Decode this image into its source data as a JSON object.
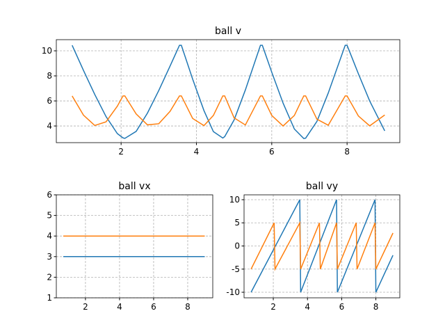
{
  "chart_data": [
    {
      "type": "line",
      "title": "ball v",
      "x": [
        0.7,
        1.0,
        1.3,
        1.6,
        1.9,
        2.05,
        2.1,
        2.4,
        2.7,
        3.0,
        3.3,
        3.55,
        3.6,
        3.9,
        4.2,
        4.45,
        4.7,
        4.75,
        5.0,
        5.3,
        5.7,
        5.75,
        6.0,
        6.3,
        6.6,
        6.85,
        6.9,
        7.2,
        7.5,
        7.95,
        8.0,
        8.3,
        8.6,
        9.0
      ],
      "series": [
        {
          "color": "#1f77b4",
          "values": [
            10.44,
            8.44,
            6.52,
            4.75,
            3.39,
            3.05,
            3.01,
            3.57,
            5.03,
            6.83,
            8.78,
            10.44,
            10.44,
            7.74,
            5.23,
            3.55,
            3.04,
            3.15,
            4.48,
            6.88,
            10.44,
            10.44,
            8.29,
            5.83,
            3.76,
            3,
            3.03,
            4.37,
            6.63,
            10.44,
            10.44,
            8.17,
            6.0,
            3.61
          ]
        },
        {
          "color": "#ff7f0e",
          "values": [
            6.4,
            4.87,
            4.04,
            4.33,
            5.58,
            6.4,
            6.4,
            4.96,
            4.09,
            4.18,
            5.17,
            6.4,
            6.4,
            4.6,
            4.03,
            4.84,
            6.4,
            6.4,
            4.65,
            4.08,
            6.4,
            6.4,
            4.84,
            4,
            4.84,
            6.4,
            6.4,
            4.54,
            4.06,
            6.4,
            6.4,
            4.8,
            4.01,
            4.88
          ]
        }
      ],
      "xlim": [
        0.28,
        9.4
      ],
      "xticks": [
        2,
        4,
        6,
        8
      ],
      "ylim": [
        2.67,
        10.89
      ],
      "yticks": [
        4,
        6,
        8,
        10
      ],
      "grid": true
    },
    {
      "type": "line",
      "title": "ball vx",
      "x": [
        0.7,
        1.0,
        1.3,
        1.6,
        1.9,
        2.05,
        2.1,
        2.4,
        2.7,
        3.0,
        3.3,
        3.55,
        3.6,
        3.9,
        4.2,
        4.45,
        4.7,
        4.75,
        5.0,
        5.3,
        5.7,
        5.75,
        6.0,
        6.3,
        6.6,
        6.85,
        6.9,
        7.2,
        7.5,
        7.95,
        8.0,
        8.3,
        8.6,
        9.0
      ],
      "series": [
        {
          "color": "#1f77b4",
          "values": [
            3,
            3,
            3,
            3,
            3,
            3,
            3,
            3,
            3,
            3,
            3,
            3,
            3,
            3,
            3,
            3,
            3,
            3,
            3,
            3,
            3,
            3,
            3,
            3,
            3,
            3,
            3,
            3,
            3,
            3,
            3,
            3,
            3,
            3
          ]
        },
        {
          "color": "#ff7f0e",
          "values": [
            4,
            4,
            4,
            4,
            4,
            4,
            4,
            4,
            4,
            4,
            4,
            4,
            4,
            4,
            4,
            4,
            4,
            4,
            4,
            4,
            4,
            4,
            4,
            4,
            4,
            4,
            4,
            4,
            4,
            4,
            4,
            4,
            4,
            4
          ]
        }
      ],
      "xlim": [
        0.29,
        9.47
      ],
      "xticks": [
        2,
        4,
        6,
        8
      ],
      "ylim": [
        1,
        6
      ],
      "yticks": [
        1,
        2,
        3,
        4,
        5,
        6
      ],
      "grid": true
    },
    {
      "type": "line",
      "title": "ball vy",
      "x": [
        0.7,
        1.0,
        1.3,
        1.6,
        1.9,
        2.05,
        2.1,
        2.4,
        2.7,
        3.0,
        3.3,
        3.55,
        3.6,
        3.9,
        4.2,
        4.45,
        4.7,
        4.75,
        5.0,
        5.3,
        5.7,
        5.75,
        6.0,
        6.3,
        6.6,
        6.85,
        6.9,
        7.2,
        7.5,
        7.95,
        8.0,
        8.3,
        8.6,
        9.0
      ],
      "series": [
        {
          "color": "#1f77b4",
          "values": [
            -10,
            -7.89,
            -5.79,
            -3.68,
            -1.58,
            -0.53,
            -0.18,
            1.93,
            4.04,
            6.14,
            8.25,
            10,
            -10,
            -7.14,
            -4.29,
            -1.9,
            0.48,
            0.95,
            3.33,
            6.19,
            10,
            -10,
            -7.73,
            -5,
            -2.27,
            0,
            0.45,
            3.18,
            5.91,
            10,
            -10,
            -7.6,
            -5.2,
            -2
          ]
        },
        {
          "color": "#ff7f0e",
          "values": [
            -5,
            -2.78,
            -0.56,
            1.67,
            3.89,
            5,
            -5,
            -2.93,
            -0.86,
            1.21,
            3.28,
            5,
            -5,
            -2.27,
            0.45,
            2.73,
            5,
            -5,
            -2.37,
            0.79,
            5,
            -5,
            -2.73,
            0,
            2.73,
            5,
            -5,
            -2.14,
            0.71,
            5,
            -5,
            -2.66,
            -0.32,
            2.8
          ]
        }
      ],
      "xlim": [
        0.29,
        9.4
      ],
      "xticks": [
        2,
        4,
        6,
        8
      ],
      "ylim": [
        -11.2,
        11.05
      ],
      "yticks": [
        -10,
        -5,
        0,
        5,
        10
      ],
      "grid": true
    }
  ]
}
